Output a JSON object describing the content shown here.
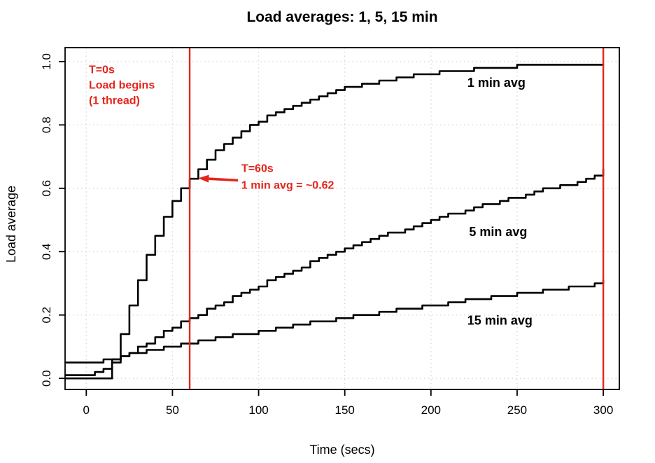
{
  "colors": {
    "curve": "#000000",
    "annotation_red": "#e4251b",
    "grid": "#d8d8d8",
    "background": "#ffffff",
    "axis": "#000000"
  },
  "chart_data": {
    "type": "line",
    "step": true,
    "title": "Load averages: 1, 5, 15 min",
    "xlabel": "Time (secs)",
    "ylabel": "Load average",
    "xlim": [
      -12.3,
      309.3
    ],
    "ylim": [
      -0.035,
      1.044
    ],
    "grid": "dotted",
    "legend_position": "inline-labels",
    "xticks": [
      {
        "v": 0,
        "label": "0"
      },
      {
        "v": 50,
        "label": "50"
      },
      {
        "v": 100,
        "label": "100"
      },
      {
        "v": 150,
        "label": "150"
      },
      {
        "v": 200,
        "label": "200"
      },
      {
        "v": 250,
        "label": "250"
      },
      {
        "v": 300,
        "label": "300"
      }
    ],
    "yticks": [
      {
        "v": 0.0,
        "label": "0.0"
      },
      {
        "v": 0.2,
        "label": "0.2"
      },
      {
        "v": 0.4,
        "label": "0.4"
      },
      {
        "v": 0.6,
        "label": "0.6"
      },
      {
        "v": 0.8,
        "label": "0.8"
      },
      {
        "v": 1.0,
        "label": "1.0"
      }
    ],
    "x": [
      -12,
      0,
      5,
      10,
      15,
      20,
      25,
      30,
      35,
      40,
      45,
      50,
      55,
      60,
      65,
      70,
      75,
      80,
      85,
      90,
      95,
      100,
      105,
      110,
      115,
      120,
      125,
      130,
      135,
      140,
      145,
      150,
      155,
      160,
      165,
      170,
      175,
      180,
      185,
      190,
      195,
      200,
      205,
      210,
      215,
      220,
      225,
      230,
      235,
      240,
      245,
      250,
      255,
      260,
      265,
      270,
      275,
      280,
      285,
      290,
      295,
      300
    ],
    "series": [
      {
        "name": "1 min avg",
        "color": "#000000",
        "values": [
          0.0,
          0.0,
          0.0,
          0.0,
          0.06,
          0.14,
          0.23,
          0.31,
          0.39,
          0.45,
          0.51,
          0.56,
          0.6,
          0.63,
          0.66,
          0.69,
          0.72,
          0.74,
          0.76,
          0.78,
          0.8,
          0.81,
          0.83,
          0.84,
          0.85,
          0.86,
          0.87,
          0.88,
          0.89,
          0.9,
          0.91,
          0.92,
          0.92,
          0.93,
          0.93,
          0.94,
          0.94,
          0.95,
          0.95,
          0.96,
          0.96,
          0.96,
          0.97,
          0.97,
          0.97,
          0.97,
          0.98,
          0.98,
          0.98,
          0.98,
          0.98,
          0.99,
          0.99,
          0.99,
          0.99,
          0.99,
          0.99,
          0.99,
          0.99,
          0.99,
          0.99,
          0.99
        ],
        "label": {
          "text": "1 min avg",
          "x": 238,
          "y": 0.92
        }
      },
      {
        "name": "5 min avg",
        "color": "#000000",
        "values": [
          0.01,
          0.01,
          0.02,
          0.03,
          0.05,
          0.07,
          0.08,
          0.1,
          0.11,
          0.13,
          0.15,
          0.16,
          0.18,
          0.19,
          0.2,
          0.22,
          0.23,
          0.24,
          0.26,
          0.27,
          0.28,
          0.29,
          0.31,
          0.32,
          0.33,
          0.34,
          0.35,
          0.37,
          0.38,
          0.39,
          0.4,
          0.41,
          0.42,
          0.43,
          0.44,
          0.45,
          0.46,
          0.46,
          0.47,
          0.48,
          0.49,
          0.5,
          0.51,
          0.52,
          0.52,
          0.53,
          0.54,
          0.55,
          0.55,
          0.56,
          0.57,
          0.57,
          0.58,
          0.59,
          0.6,
          0.6,
          0.61,
          0.61,
          0.62,
          0.63,
          0.64,
          0.66
        ],
        "label": {
          "text": "5 min avg",
          "x": 239,
          "y": 0.449
        }
      },
      {
        "name": "15 min avg",
        "color": "#000000",
        "values": [
          0.05,
          0.05,
          0.05,
          0.06,
          0.06,
          0.07,
          0.08,
          0.08,
          0.09,
          0.09,
          0.1,
          0.1,
          0.11,
          0.11,
          0.12,
          0.12,
          0.13,
          0.13,
          0.14,
          0.14,
          0.14,
          0.15,
          0.15,
          0.16,
          0.16,
          0.17,
          0.17,
          0.18,
          0.18,
          0.18,
          0.19,
          0.19,
          0.2,
          0.2,
          0.2,
          0.21,
          0.21,
          0.22,
          0.22,
          0.22,
          0.23,
          0.23,
          0.23,
          0.24,
          0.24,
          0.25,
          0.25,
          0.25,
          0.26,
          0.26,
          0.26,
          0.27,
          0.27,
          0.27,
          0.28,
          0.28,
          0.28,
          0.29,
          0.29,
          0.29,
          0.3,
          0.31
        ],
        "label": {
          "text": "15 min avg",
          "x": 240,
          "y": 0.17
        }
      }
    ],
    "vlines": [
      {
        "x": 60,
        "color": "#e4251b"
      },
      {
        "x": 300,
        "color": "#e4251b"
      }
    ],
    "annotations": [
      {
        "id": "t0-note",
        "lines": [
          "T=0s",
          "Load begins",
          "(1 thread)"
        ],
        "x": 1.5,
        "y": 0.963,
        "line_height": 22,
        "color": "#e4251b"
      },
      {
        "id": "t60-note",
        "lines": [
          "T=60s",
          "1 min avg = ~0.62"
        ],
        "x": 90,
        "y": 0.651,
        "line_height": 24,
        "color": "#e4251b"
      }
    ],
    "arrow": {
      "from_x": 88,
      "from_y": 0.625,
      "to_x": 65,
      "to_y": 0.632,
      "color": "#e4251b"
    }
  }
}
